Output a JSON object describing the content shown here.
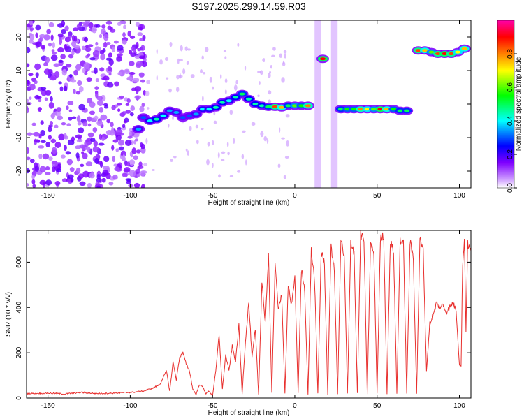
{
  "title": "S197.2025.299.14.59.R03",
  "chart_data": [
    {
      "type": "heatmap",
      "panel": "spectrogram",
      "xlabel": "Height of straight line (km)",
      "ylabel": "Frequency (Hz)",
      "xlim": [
        -163,
        107
      ],
      "ylim": [
        -25,
        25
      ],
      "xticks": [
        -150,
        -100,
        -50,
        0,
        50,
        100
      ],
      "yticks": [
        -20,
        -10,
        0,
        10,
        20
      ],
      "colorbar": {
        "label": "Normalized spectral amplitude",
        "ticks": [
          0.0,
          0.2,
          0.4,
          0.6,
          0.8
        ],
        "range": [
          0,
          1
        ],
        "stops": [
          "#ffffff",
          "#7f00ff",
          "#0000ff",
          "#00ffff",
          "#00ff00",
          "#ffff00",
          "#ff7f00",
          "#ff0000",
          "#ff00ff"
        ]
      },
      "ridge": [
        {
          "x": -95,
          "f": -7.5,
          "a": 0.35
        },
        {
          "x": -92,
          "f": -4,
          "a": 0.3
        },
        {
          "x": -88,
          "f": -5,
          "a": 0.4
        },
        {
          "x": -84,
          "f": -4.5,
          "a": 0.45
        },
        {
          "x": -80,
          "f": -3.5,
          "a": 0.4
        },
        {
          "x": -76,
          "f": -2,
          "a": 0.35
        },
        {
          "x": -72,
          "f": -2.5,
          "a": 0.35
        },
        {
          "x": -68,
          "f": -4,
          "a": 0.3
        },
        {
          "x": -64,
          "f": -3.5,
          "a": 0.3
        },
        {
          "x": -60,
          "f": -3,
          "a": 0.35
        },
        {
          "x": -56,
          "f": -1.5,
          "a": 0.4
        },
        {
          "x": -52,
          "f": -1.5,
          "a": 0.4
        },
        {
          "x": -48,
          "f": -1,
          "a": 0.45
        },
        {
          "x": -44,
          "f": 0.5,
          "a": 0.45
        },
        {
          "x": -40,
          "f": 1,
          "a": 0.4
        },
        {
          "x": -36,
          "f": 2,
          "a": 0.45
        },
        {
          "x": -32,
          "f": 3,
          "a": 0.5
        },
        {
          "x": -28,
          "f": 1.5,
          "a": 0.45
        },
        {
          "x": -24,
          "f": 0,
          "a": 0.45
        },
        {
          "x": -20,
          "f": -0.5,
          "a": 0.45
        },
        {
          "x": -16,
          "f": -0.8,
          "a": 0.5
        },
        {
          "x": -12,
          "f": -0.8,
          "a": 0.85
        },
        {
          "x": -8,
          "f": -1,
          "a": 0.75
        },
        {
          "x": -4,
          "f": -0.5,
          "a": 0.5
        },
        {
          "x": 0,
          "f": -0.5,
          "a": 0.6
        },
        {
          "x": 4,
          "f": -0.5,
          "a": 0.55
        },
        {
          "x": 8,
          "f": -0.5,
          "a": 0.8
        },
        {
          "x": 17,
          "f": 13.5,
          "a": 0.9
        },
        {
          "x": 28,
          "f": -1.5,
          "a": 0.5
        },
        {
          "x": 32,
          "f": -1.5,
          "a": 0.55
        },
        {
          "x": 36,
          "f": -1.5,
          "a": 0.55
        },
        {
          "x": 40,
          "f": -1.5,
          "a": 0.8
        },
        {
          "x": 44,
          "f": -1.5,
          "a": 0.7
        },
        {
          "x": 48,
          "f": -1.5,
          "a": 0.6
        },
        {
          "x": 52,
          "f": -1.5,
          "a": 0.9
        },
        {
          "x": 56,
          "f": -1.5,
          "a": 0.75
        },
        {
          "x": 60,
          "f": -1.5,
          "a": 0.55
        },
        {
          "x": 64,
          "f": -2,
          "a": 0.5
        },
        {
          "x": 68,
          "f": -2,
          "a": 0.5
        },
        {
          "x": 75,
          "f": 16,
          "a": 0.85
        },
        {
          "x": 79,
          "f": 16,
          "a": 0.75
        },
        {
          "x": 83,
          "f": 15.5,
          "a": 0.6
        },
        {
          "x": 87,
          "f": 15,
          "a": 0.85
        },
        {
          "x": 91,
          "f": 15,
          "a": 0.9
        },
        {
          "x": 95,
          "f": 15,
          "a": 0.85
        },
        {
          "x": 99,
          "f": 15.5,
          "a": 0.7
        },
        {
          "x": 103,
          "f": 16.5,
          "a": 0.75
        }
      ]
    },
    {
      "type": "line",
      "panel": "snr",
      "xlabel": "Height of straight line (km)",
      "ylabel": "SNR (10 * v/v)",
      "xlim": [
        -163,
        107
      ],
      "ylim": [
        0,
        740
      ],
      "xticks": [
        -150,
        -100,
        -50,
        0,
        50,
        100
      ],
      "yticks": [
        0,
        200,
        400,
        600
      ],
      "color": "#e8302e",
      "x": [
        -163,
        -150,
        -140,
        -130,
        -120,
        -110,
        -100,
        -92,
        -86,
        -82,
        -78,
        -76,
        -74,
        -72,
        -70,
        -68,
        -66,
        -64,
        -62,
        -60,
        -58,
        -56,
        -54,
        -52,
        -50,
        -48,
        -46,
        -44,
        -42,
        -40,
        -38,
        -36,
        -34,
        -32,
        -30,
        -28,
        -26,
        -24,
        -22,
        -20,
        -18,
        -16,
        -14,
        -12,
        -10,
        -8,
        -6,
        -4,
        -2,
        0,
        2,
        4,
        6,
        8,
        10,
        12,
        14,
        16,
        18,
        20,
        22,
        24,
        26,
        28,
        30,
        32,
        34,
        36,
        38,
        40,
        42,
        44,
        46,
        48,
        50,
        52,
        54,
        56,
        58,
        60,
        62,
        64,
        66,
        68,
        70,
        72,
        74,
        76,
        78,
        80,
        82,
        84,
        86,
        88,
        90,
        92,
        94,
        96,
        98,
        100,
        101,
        102,
        103,
        104,
        105,
        107
      ],
      "values": [
        20,
        22,
        18,
        25,
        20,
        22,
        25,
        30,
        45,
        60,
        120,
        30,
        160,
        80,
        180,
        200,
        150,
        120,
        40,
        15,
        60,
        50,
        20,
        30,
        10,
        120,
        280,
        40,
        190,
        120,
        230,
        160,
        320,
        20,
        250,
        420,
        180,
        300,
        15,
        520,
        330,
        620,
        25,
        580,
        400,
        460,
        20,
        500,
        410,
        540,
        20,
        570,
        480,
        15,
        650,
        520,
        20,
        640,
        600,
        15,
        680,
        560,
        20,
        700,
        620,
        20,
        690,
        650,
        20,
        720,
        700,
        20,
        680,
        640,
        20,
        700,
        720,
        20,
        690,
        650,
        20,
        700,
        680,
        20,
        690,
        620,
        20,
        700,
        650,
        120,
        330,
        360,
        420,
        400,
        410,
        380,
        400,
        420,
        390,
        150,
        140,
        600,
        700,
        300,
        680,
        650
      ]
    }
  ]
}
